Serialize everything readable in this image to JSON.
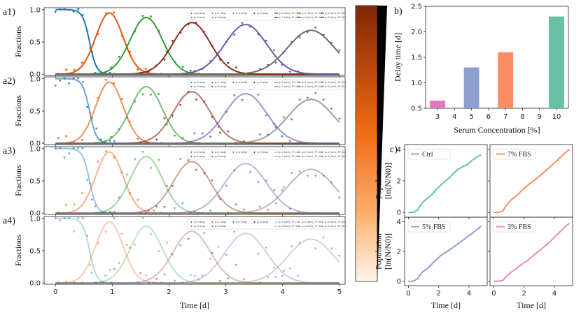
{
  "colors": {
    "c0": "#1f77b4",
    "c1": "#e6550d",
    "c2": "#2ca02c",
    "c3": "#8c2d1c",
    "c4": "#6a5aad",
    "c5": "#6b6b6b",
    "bar3": "#e377c2",
    "bar5": "#8c9fcf",
    "bar7": "#fc8d62",
    "bar10": "#66c2a5",
    "ctrl": "#66c2a5",
    "fbs7": "#fc8d62",
    "fbs5": "#8da0cb",
    "fbs3": "#e78ac3"
  },
  "chart_data": [
    {
      "id": "a",
      "type": "line",
      "panel_labels": [
        "a1)",
        "a2)",
        "a3)",
        "a4)"
      ],
      "xlabel": "Time [d]",
      "ylabel": "Fractions",
      "xlim": [
        -0.2,
        5.1
      ],
      "ylim": [
        -0.02,
        1.03
      ],
      "xticks": [
        "0",
        "1",
        "2",
        "3",
        "4",
        "5"
      ],
      "yticks": [
        "0.0",
        "0.5",
        "1.0"
      ],
      "series_names": [
        "g=0",
        "g=1",
        "g=2",
        "g=3",
        "g=4",
        "g=5"
      ],
      "series_peaks": [
        {
          "name": "g=0",
          "center": 0,
          "peak": 1.0
        },
        {
          "name": "g=1",
          "center": 0.95,
          "peak": 0.95
        },
        {
          "name": "g=2",
          "center": 1.6,
          "peak": 0.88
        },
        {
          "name": "g=3",
          "center": 2.4,
          "peak": 0.8
        },
        {
          "name": "g=4",
          "center": 3.35,
          "peak": 0.77
        },
        {
          "name": "g=5",
          "center": 4.5,
          "peak": 0.68
        }
      ],
      "panel_alpha": [
        1.0,
        0.65,
        0.45,
        0.3
      ],
      "legend_markers": [
        "g=0 (exp)",
        "g=1 (exp)",
        "g=2 (exp)",
        "g=3 (exp)",
        "g=4 (exp)",
        "g=5 (exp)"
      ],
      "legend_lines": [
        "g=0 (sim) | R²=1.0",
        "g=1 (sim) | R²=0.9",
        "g=2 (sim) | R²=0.9",
        "g=3 (sim) | R²=0.8",
        "g=4 (sim) | R²=0.9",
        "g=5 (sim) | R²=0.9"
      ]
    },
    {
      "id": "b",
      "type": "bar",
      "panel_label": "b)",
      "title": "",
      "xlabel": "Serum Concentration [%]",
      "ylabel": "Delay time [d]",
      "categories": [
        "3",
        "4",
        "5",
        "6",
        "7",
        "8",
        "9",
        "10"
      ],
      "values": [
        0.65,
        null,
        1.3,
        null,
        1.6,
        null,
        null,
        2.3
      ],
      "ylim": [
        0.5,
        2.5
      ],
      "yticks": [
        "0.5",
        "1.0",
        "1.5",
        "2.0",
        "2.5"
      ]
    },
    {
      "id": "c",
      "type": "line",
      "panel_label": "c)",
      "xlabel": "Time [d]",
      "ylabel": "Population\n[ln(N/N0)]",
      "ylabel_lines": [
        "Population",
        "[ln(N/N0)]"
      ],
      "xlim": [
        -0.25,
        5.2
      ],
      "ylim": [
        -0.3,
        4.3
      ],
      "xticks": [
        "0",
        "2",
        "4"
      ],
      "yticks": [
        "0",
        "2",
        "4"
      ],
      "series": [
        {
          "name": "Ctrl",
          "x": [
            0,
            0.3,
            0.6,
            0.9,
            1.2,
            1.5,
            1.8,
            2.1,
            2.4,
            2.7,
            3.0,
            3.3,
            3.6,
            3.9,
            4.2,
            4.5,
            4.8
          ],
          "values": [
            0,
            0,
            0.15,
            0.6,
            0.85,
            1.1,
            1.4,
            1.7,
            1.95,
            2.2,
            2.5,
            2.75,
            2.9,
            3.05,
            3.3,
            3.5,
            3.65
          ]
        },
        {
          "name": "7% FBS",
          "x": [
            0,
            0.3,
            0.6,
            0.9,
            1.2,
            1.5,
            1.8,
            2.1,
            2.4,
            2.7,
            3.0,
            3.3,
            3.6,
            3.9,
            4.2,
            4.5,
            4.8,
            5.0
          ],
          "values": [
            0,
            0,
            0.1,
            0.55,
            0.85,
            1.05,
            1.35,
            1.6,
            1.85,
            2.05,
            2.3,
            2.55,
            2.8,
            3.05,
            3.3,
            3.6,
            3.85,
            4.0
          ]
        },
        {
          "name": "5% FBS",
          "x": [
            0,
            0.3,
            0.6,
            0.9,
            1.2,
            1.5,
            1.8,
            2.1,
            2.4,
            2.7,
            3.0,
            3.3,
            3.6,
            3.9,
            4.2,
            4.5,
            4.8
          ],
          "values": [
            0,
            0,
            0.15,
            0.6,
            0.8,
            1.1,
            1.4,
            1.7,
            1.9,
            2.1,
            2.3,
            2.55,
            2.75,
            3.0,
            3.2,
            3.45,
            3.7
          ]
        },
        {
          "name": "3% FBS",
          "x": [
            0,
            0.3,
            0.6,
            0.9,
            1.2,
            1.5,
            1.8,
            2.1,
            2.4,
            2.7,
            3.0,
            3.3,
            3.6,
            3.9,
            4.2,
            4.5,
            4.8,
            5.0
          ],
          "values": [
            0,
            0,
            0.05,
            0.4,
            0.65,
            0.85,
            1.1,
            1.3,
            1.55,
            1.8,
            2.05,
            2.3,
            2.55,
            2.85,
            3.15,
            3.45,
            3.75,
            3.9
          ]
        }
      ]
    }
  ]
}
